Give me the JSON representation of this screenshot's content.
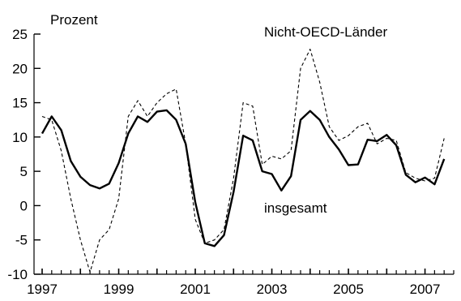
{
  "chart_data": {
    "type": "line",
    "ylabel": "Prozent",
    "ylim": [
      -10,
      25
    ],
    "xlim": [
      1997.0,
      2007.75
    ],
    "y_ticks": [
      "25",
      "20",
      "15",
      "10",
      "5",
      "0",
      "-5",
      "-10"
    ],
    "y_tick_values": [
      25,
      20,
      15,
      10,
      5,
      0,
      -5,
      -10
    ],
    "x_tick_labels": [
      "1997",
      "1999",
      "2001",
      "2003",
      "2005",
      "2007"
    ],
    "x_tick_values": [
      1997,
      1999,
      2001,
      2003,
      2005,
      2007
    ],
    "grid": false,
    "legend": "none",
    "annotations": {
      "non_oecd": "Nicht-OECD-Länder",
      "total": "insgesamt"
    },
    "series": [
      {
        "name": "insgesamt",
        "style": "solid",
        "color": "#000000",
        "x": [
          1997.0,
          1997.25,
          1997.5,
          1997.75,
          1998.0,
          1998.25,
          1998.5,
          1998.75,
          1999.0,
          1999.25,
          1999.5,
          1999.75,
          2000.0,
          2000.25,
          2000.5,
          2000.75,
          2001.0,
          2001.25,
          2001.5,
          2001.75,
          2002.0,
          2002.25,
          2002.5,
          2002.75,
          2003.0,
          2003.25,
          2003.5,
          2003.75,
          2004.0,
          2004.25,
          2004.5,
          2004.75,
          2005.0,
          2005.25,
          2005.5,
          2005.75,
          2006.0,
          2006.25,
          2006.5,
          2006.75,
          2007.0,
          2007.25,
          2007.5
        ],
        "y": [
          10.5,
          13.0,
          11.0,
          6.5,
          4.2,
          3.0,
          2.5,
          3.2,
          6.2,
          10.5,
          13.0,
          12.2,
          13.7,
          13.9,
          12.5,
          9.0,
          0.5,
          -5.5,
          -5.9,
          -4.3,
          2.0,
          10.2,
          9.5,
          5.0,
          4.6,
          2.2,
          4.3,
          12.5,
          13.8,
          12.5,
          10.0,
          8.2,
          5.9,
          6.0,
          9.6,
          9.4,
          10.3,
          8.8,
          4.5,
          3.4,
          4.1,
          3.1,
          6.8
        ]
      },
      {
        "name": "Nicht-OECD-Länder",
        "style": "dashed",
        "color": "#000000",
        "x": [
          1997.0,
          1997.25,
          1997.5,
          1997.75,
          1998.0,
          1998.25,
          1998.5,
          1998.75,
          1999.0,
          1999.25,
          1999.5,
          1999.75,
          2000.0,
          2000.25,
          2000.5,
          2000.75,
          2001.0,
          2001.25,
          2001.5,
          2001.75,
          2002.0,
          2002.25,
          2002.5,
          2002.75,
          2003.0,
          2003.25,
          2003.5,
          2003.75,
          2004.0,
          2004.25,
          2004.5,
          2004.75,
          2005.0,
          2005.25,
          2005.5,
          2005.75,
          2006.0,
          2006.25,
          2006.5,
          2006.75,
          2007.0,
          2007.25,
          2007.5
        ],
        "y": [
          13.0,
          12.5,
          8.0,
          1.0,
          -5.0,
          -9.7,
          -5.0,
          -3.5,
          1.0,
          13.0,
          15.3,
          13.0,
          15.0,
          16.3,
          17.0,
          9.0,
          -2.0,
          -5.5,
          -5.0,
          -3.5,
          4.0,
          15.0,
          14.5,
          6.0,
          7.2,
          6.8,
          8.0,
          20.0,
          22.8,
          18.0,
          11.5,
          9.5,
          10.2,
          11.5,
          12.0,
          9.0,
          9.8,
          9.5,
          4.8,
          4.0,
          3.6,
          4.0,
          9.8
        ]
      }
    ]
  }
}
